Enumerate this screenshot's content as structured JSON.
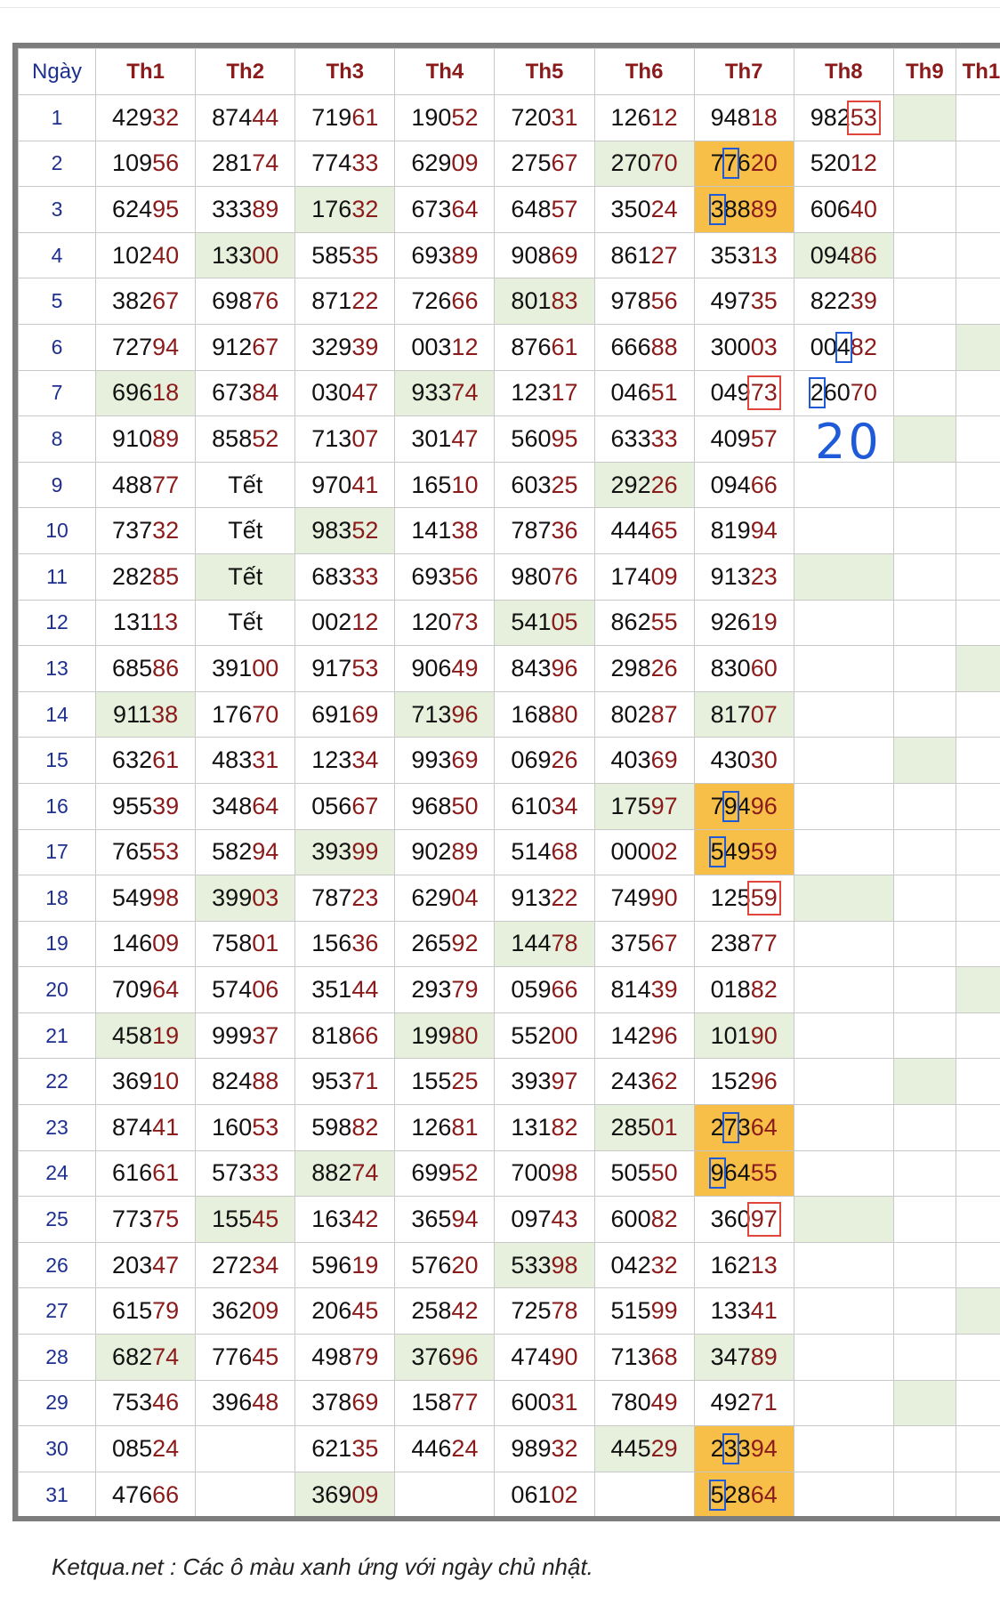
{
  "header": {
    "day_label": "Ngày",
    "months": [
      "Th1",
      "Th2",
      "Th3",
      "Th4",
      "Th5",
      "Th6",
      "Th7",
      "Th8",
      "Th9",
      "Th1"
    ]
  },
  "rows": [
    {
      "day": "1",
      "cells": [
        "42932",
        "87444",
        "71961",
        "19052",
        "72031",
        "12612",
        "94818",
        "98253",
        "",
        ""
      ]
    },
    {
      "day": "2",
      "cells": [
        "10956",
        "28174",
        "77433",
        "62909",
        "27567",
        "27070",
        "77620",
        "52012",
        "",
        ""
      ]
    },
    {
      "day": "3",
      "cells": [
        "62495",
        "33389",
        "17632",
        "67364",
        "64857",
        "35024",
        "38889",
        "60640",
        "",
        ""
      ]
    },
    {
      "day": "4",
      "cells": [
        "10240",
        "13300",
        "58535",
        "69389",
        "90869",
        "86127",
        "35313",
        "09486",
        "",
        ""
      ]
    },
    {
      "day": "5",
      "cells": [
        "38267",
        "69876",
        "87122",
        "72666",
        "80183",
        "97856",
        "49735",
        "82239",
        "",
        ""
      ]
    },
    {
      "day": "6",
      "cells": [
        "72794",
        "91267",
        "32939",
        "00312",
        "87661",
        "66688",
        "30003",
        "00482",
        "",
        ""
      ]
    },
    {
      "day": "7",
      "cells": [
        "69618",
        "67384",
        "03047",
        "93374",
        "12317",
        "04651",
        "04973",
        "26070",
        "",
        ""
      ]
    },
    {
      "day": "8",
      "cells": [
        "91089",
        "85852",
        "71307",
        "30147",
        "56095",
        "63333",
        "40957",
        "",
        "",
        ""
      ]
    },
    {
      "day": "9",
      "cells": [
        "48877",
        "Tết",
        "97041",
        "16510",
        "60325",
        "29226",
        "09466",
        "",
        "",
        ""
      ]
    },
    {
      "day": "10",
      "cells": [
        "73732",
        "Tết",
        "98352",
        "14138",
        "78736",
        "44465",
        "81994",
        "",
        "",
        ""
      ]
    },
    {
      "day": "11",
      "cells": [
        "28285",
        "Tết",
        "68333",
        "69356",
        "98076",
        "17409",
        "91323",
        "",
        "",
        ""
      ]
    },
    {
      "day": "12",
      "cells": [
        "13113",
        "Tết",
        "00212",
        "12073",
        "54105",
        "86255",
        "92619",
        "",
        "",
        ""
      ]
    },
    {
      "day": "13",
      "cells": [
        "68586",
        "39100",
        "91753",
        "90649",
        "84396",
        "29826",
        "83060",
        "",
        "",
        ""
      ]
    },
    {
      "day": "14",
      "cells": [
        "91138",
        "17670",
        "69169",
        "71396",
        "16880",
        "80287",
        "81707",
        "",
        "",
        ""
      ]
    },
    {
      "day": "15",
      "cells": [
        "63261",
        "48331",
        "12334",
        "99369",
        "06926",
        "40369",
        "43030",
        "",
        "",
        ""
      ]
    },
    {
      "day": "16",
      "cells": [
        "95539",
        "34864",
        "05667",
        "96850",
        "61034",
        "17597",
        "79496",
        "",
        "",
        ""
      ]
    },
    {
      "day": "17",
      "cells": [
        "76553",
        "58294",
        "39399",
        "90289",
        "51468",
        "00002",
        "54959",
        "",
        "",
        ""
      ]
    },
    {
      "day": "18",
      "cells": [
        "54998",
        "39903",
        "78723",
        "62904",
        "91322",
        "74990",
        "12559",
        "",
        "",
        ""
      ]
    },
    {
      "day": "19",
      "cells": [
        "14609",
        "75801",
        "15636",
        "26592",
        "14478",
        "37567",
        "23877",
        "",
        "",
        ""
      ]
    },
    {
      "day": "20",
      "cells": [
        "70964",
        "57406",
        "35144",
        "29379",
        "05966",
        "81439",
        "01882",
        "",
        "",
        ""
      ]
    },
    {
      "day": "21",
      "cells": [
        "45819",
        "99937",
        "81866",
        "19980",
        "55200",
        "14296",
        "10190",
        "",
        "",
        ""
      ]
    },
    {
      "day": "22",
      "cells": [
        "36910",
        "82488",
        "95371",
        "15525",
        "39397",
        "24362",
        "15296",
        "",
        "",
        ""
      ]
    },
    {
      "day": "23",
      "cells": [
        "87441",
        "16053",
        "59882",
        "12681",
        "13182",
        "28501",
        "27364",
        "",
        "",
        ""
      ]
    },
    {
      "day": "24",
      "cells": [
        "61661",
        "57333",
        "88274",
        "69952",
        "70098",
        "50550",
        "96455",
        "",
        "",
        ""
      ]
    },
    {
      "day": "25",
      "cells": [
        "77375",
        "15545",
        "16342",
        "36594",
        "09743",
        "60082",
        "36097",
        "",
        "",
        ""
      ]
    },
    {
      "day": "26",
      "cells": [
        "20347",
        "27234",
        "59619",
        "57620",
        "53398",
        "04232",
        "16213",
        "",
        "",
        ""
      ]
    },
    {
      "day": "27",
      "cells": [
        "61579",
        "36209",
        "20645",
        "25842",
        "72578",
        "51599",
        "13341",
        "",
        "",
        ""
      ]
    },
    {
      "day": "28",
      "cells": [
        "68274",
        "77645",
        "49879",
        "37696",
        "47490",
        "71368",
        "34789",
        "",
        "",
        ""
      ]
    },
    {
      "day": "29",
      "cells": [
        "75346",
        "39648",
        "37869",
        "15877",
        "60031",
        "78049",
        "49271",
        "",
        "",
        ""
      ]
    },
    {
      "day": "30",
      "cells": [
        "08524",
        "",
        "62135",
        "44624",
        "98932",
        "44529",
        "23394",
        "",
        "",
        ""
      ]
    },
    {
      "day": "31",
      "cells": [
        "47666",
        "",
        "36909",
        "",
        "06102",
        "",
        "52864",
        "",
        "",
        ""
      ]
    }
  ],
  "sunday_cells": [
    [
      0,
      8
    ],
    [
      1,
      5
    ],
    [
      1,
      6
    ],
    [
      2,
      2
    ],
    [
      3,
      1
    ],
    [
      3,
      7
    ],
    [
      4,
      4
    ],
    [
      5,
      9
    ],
    [
      6,
      0
    ],
    [
      6,
      3
    ],
    [
      7,
      8
    ],
    [
      8,
      5
    ],
    [
      9,
      2
    ],
    [
      10,
      1
    ],
    [
      10,
      7
    ],
    [
      11,
      4
    ],
    [
      12,
      9
    ],
    [
      13,
      0
    ],
    [
      13,
      3
    ],
    [
      13,
      6
    ],
    [
      14,
      8
    ],
    [
      15,
      5
    ],
    [
      16,
      2
    ],
    [
      17,
      1
    ],
    [
      17,
      7
    ],
    [
      18,
      4
    ],
    [
      19,
      9
    ],
    [
      20,
      0
    ],
    [
      20,
      3
    ],
    [
      20,
      6
    ],
    [
      21,
      8
    ],
    [
      22,
      5
    ],
    [
      23,
      2
    ],
    [
      24,
      1
    ],
    [
      24,
      7
    ],
    [
      25,
      4
    ],
    [
      26,
      9
    ],
    [
      27,
      0
    ],
    [
      27,
      3
    ],
    [
      27,
      6
    ],
    [
      28,
      8
    ],
    [
      29,
      5
    ],
    [
      30,
      2
    ],
    [
      30,
      6
    ]
  ],
  "highlight_cells": [
    [
      1,
      6
    ],
    [
      2,
      6
    ],
    [
      15,
      6
    ],
    [
      16,
      6
    ],
    [
      22,
      6
    ],
    [
      23,
      6
    ],
    [
      29,
      6
    ],
    [
      30,
      6
    ]
  ],
  "blue_box_marks": [
    [
      1,
      6,
      1
    ],
    [
      2,
      6,
      0
    ],
    [
      5,
      7,
      2
    ],
    [
      6,
      7,
      0
    ],
    [
      15,
      6,
      1
    ],
    [
      16,
      6,
      0
    ],
    [
      22,
      6,
      1
    ],
    [
      23,
      6,
      0
    ],
    [
      29,
      6,
      1
    ],
    [
      30,
      6,
      0
    ]
  ],
  "red_box_marks": [
    [
      0,
      7
    ],
    [
      6,
      6
    ],
    [
      17,
      6
    ],
    [
      24,
      6
    ]
  ],
  "annotation_handwritten": "20",
  "colors": {
    "sunday_bg": "#e6f0dc",
    "highlight_bg": "#f7bf48",
    "last_digits": "#8b1a1a",
    "day_number": "#1d2f8f",
    "blue_box": "#1f5bd8",
    "red_box": "#e0463c"
  },
  "footer": "Ketqua.net : Các ô màu xanh ứng với ngày chủ nhật."
}
